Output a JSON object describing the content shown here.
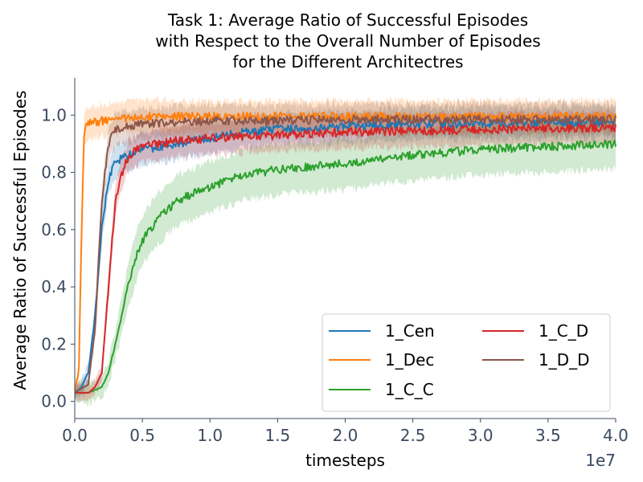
{
  "chart_data": {
    "type": "line",
    "title": [
      "Task 1: Average Ratio of Successful Episodes",
      "with Respect to the Overall Number of Episodes",
      "for the Different Architectres"
    ],
    "xlabel": "timesteps",
    "ylabel": "Average Ratio of Successful Episodes",
    "x_offset_label": "1e7",
    "xlim": [
      0,
      4.0
    ],
    "ylim": [
      -0.06,
      1.13
    ],
    "x_ticks": [
      0.0,
      0.5,
      1.0,
      1.5,
      2.0,
      2.5,
      3.0,
      3.5,
      4.0
    ],
    "x_tick_labels": [
      "0.0",
      "0.5",
      "1.0",
      "1.5",
      "2.0",
      "2.5",
      "3.0",
      "3.5",
      "4.0"
    ],
    "y_ticks": [
      0.0,
      0.2,
      0.4,
      0.6,
      0.8,
      1.0
    ],
    "y_tick_labels": [
      "0.0",
      "0.2",
      "0.4",
      "0.6",
      "0.8",
      "1.0"
    ],
    "grid": false,
    "legend": {
      "placement": "lower-right",
      "columns": 2
    },
    "series": [
      {
        "name": "1_Cen",
        "color": "#1f77b4",
        "x": [
          0.0,
          0.05,
          0.1,
          0.15,
          0.2,
          0.25,
          0.3,
          0.4,
          0.5,
          0.75,
          1.0,
          1.25,
          1.5,
          2.0,
          2.5,
          3.0,
          3.5,
          4.0
        ],
        "y": [
          0.03,
          0.05,
          0.1,
          0.3,
          0.6,
          0.78,
          0.84,
          0.86,
          0.88,
          0.9,
          0.92,
          0.94,
          0.95,
          0.96,
          0.97,
          0.97,
          0.975,
          0.975
        ]
      },
      {
        "name": "1_Dec",
        "color": "#ff7f0e",
        "x": [
          0.0,
          0.03,
          0.05,
          0.07,
          0.1,
          0.2,
          0.3,
          0.5,
          1.0,
          2.0,
          3.0,
          4.0
        ],
        "y": [
          0.04,
          0.1,
          0.6,
          0.95,
          0.97,
          0.98,
          0.99,
          0.995,
          0.995,
          0.995,
          0.995,
          0.995
        ]
      },
      {
        "name": "1_C_C",
        "color": "#2ca02c",
        "x": [
          0.0,
          0.1,
          0.2,
          0.25,
          0.3,
          0.35,
          0.4,
          0.45,
          0.5,
          0.6,
          0.75,
          1.0,
          1.25,
          1.5,
          2.0,
          2.5,
          3.0,
          3.5,
          4.0
        ],
        "y": [
          0.03,
          0.03,
          0.05,
          0.1,
          0.2,
          0.3,
          0.42,
          0.5,
          0.56,
          0.63,
          0.7,
          0.75,
          0.79,
          0.81,
          0.83,
          0.86,
          0.88,
          0.89,
          0.9
        ]
      },
      {
        "name": "1_C_D",
        "color": "#d62728",
        "x": [
          0.0,
          0.1,
          0.15,
          0.2,
          0.25,
          0.3,
          0.35,
          0.4,
          0.5,
          0.75,
          1.0,
          1.5,
          2.0,
          2.5,
          3.0,
          3.5,
          4.0
        ],
        "y": [
          0.03,
          0.03,
          0.05,
          0.1,
          0.4,
          0.7,
          0.8,
          0.86,
          0.89,
          0.91,
          0.92,
          0.93,
          0.94,
          0.945,
          0.95,
          0.955,
          0.955
        ]
      },
      {
        "name": "1_D_D",
        "color": "#8c564b",
        "x": [
          0.0,
          0.1,
          0.15,
          0.2,
          0.25,
          0.3,
          0.4,
          0.5,
          0.75,
          1.0,
          1.5,
          2.0,
          2.5,
          3.0,
          3.5,
          4.0
        ],
        "y": [
          0.03,
          0.06,
          0.25,
          0.7,
          0.9,
          0.95,
          0.96,
          0.97,
          0.975,
          0.98,
          0.98,
          0.985,
          0.985,
          0.985,
          0.985,
          0.985
        ]
      }
    ]
  }
}
